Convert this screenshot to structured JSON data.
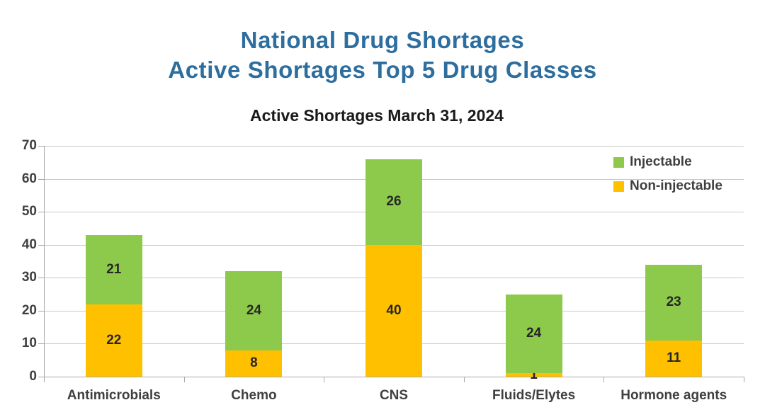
{
  "header": {
    "title_line1": "National Drug Shortages",
    "title_line2": "Active Shortages Top 5 Drug Classes"
  },
  "chart_data": {
    "type": "bar",
    "stacked": true,
    "title": "Active Shortages March 31, 2024",
    "categories": [
      "Antimicrobials",
      "Chemo",
      "CNS",
      "Fluids/Elytes",
      "Hormone agents"
    ],
    "series": [
      {
        "name": "Non-injectable",
        "color": "#FFC000",
        "values": [
          22,
          8,
          40,
          1,
          11
        ]
      },
      {
        "name": "Injectable",
        "color": "#8DC94A",
        "values": [
          21,
          24,
          26,
          24,
          23
        ]
      }
    ],
    "totals": [
      43,
      32,
      66,
      25,
      34
    ],
    "xlabel": "",
    "ylabel": "",
    "ylim": [
      0,
      70
    ],
    "ytick_step": 10,
    "yticks": [
      0,
      10,
      20,
      30,
      40,
      50,
      60,
      70
    ],
    "grid": true,
    "legend": {
      "position": "top-right",
      "items": [
        "Injectable",
        "Non-injectable"
      ]
    }
  },
  "colors": {
    "title_blue": "#2D6E9E",
    "bar_green": "#8DC94A",
    "bar_orange": "#FFC000",
    "gridline": "#c9c9c9",
    "axis": "#a8a8a8",
    "label_text": "#3f3f3f"
  }
}
